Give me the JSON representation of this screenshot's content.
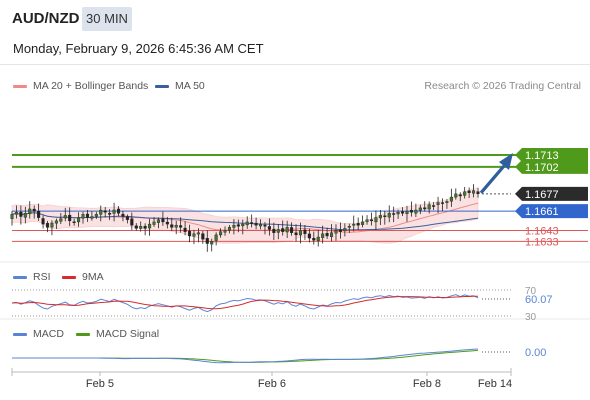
{
  "header": {
    "symbol": "AUD/NZD",
    "timeframe": "30 MIN",
    "datetime": "Monday, February 9, 2026 6:45:36 AM CET"
  },
  "credit": "Research © 2026 Trading Central",
  "colors": {
    "candle": "#3d7a2a",
    "bollinger_fill": "#fbdede",
    "ma20": "#f08a8a",
    "ma50": "#3a5f9e",
    "support": "#e05555",
    "resistance": "#4f9a1a",
    "current": "#3366cc",
    "rsi": "#5b84d6",
    "rsi_ma": "#d62c2c",
    "macd": "#5b84d6",
    "macd_signal": "#4f9a1a",
    "arrow": "#2e5e9e"
  },
  "chart_data": [
    {
      "type": "candlestick",
      "title": "AUD/NZD",
      "legend": [
        {
          "name": "MA 20 + Bollinger Bands",
          "color": "#f08a8a"
        },
        {
          "name": "MA 50",
          "color": "#3a5f9e"
        }
      ],
      "x_ticks": [
        "Feb 5",
        "Feb 6",
        "Feb 8",
        "Feb 14"
      ],
      "ylim": [
        1.162,
        1.172
      ],
      "close_series": [
        1.1658,
        1.166,
        1.1656,
        1.1659,
        1.1663,
        1.1661,
        1.1655,
        1.1649,
        1.1646,
        1.165,
        1.1652,
        1.1654,
        1.1657,
        1.1652,
        1.1651,
        1.1655,
        1.1658,
        1.1655,
        1.1656,
        1.1658,
        1.1662,
        1.166,
        1.1658,
        1.1662,
        1.1659,
        1.1656,
        1.1653,
        1.1648,
        1.1645,
        1.1647,
        1.1645,
        1.1649,
        1.1651,
        1.1653,
        1.1651,
        1.1649,
        1.1646,
        1.1648,
        1.1646,
        1.1642,
        1.1638,
        1.164,
        1.1641,
        1.1635,
        1.1631,
        1.1633,
        1.1639,
        1.1642,
        1.1643,
        1.1646,
        1.1648,
        1.1647,
        1.1649,
        1.1651,
        1.165,
        1.1648,
        1.1649,
        1.1647,
        1.1644,
        1.1641,
        1.1644,
        1.1642,
        1.1646,
        1.1641,
        1.1639,
        1.1643,
        1.164,
        1.1636,
        1.1634,
        1.1637,
        1.164,
        1.1638,
        1.1641,
        1.1643,
        1.1642,
        1.1645,
        1.1647,
        1.1649,
        1.1648,
        1.1651,
        1.1653,
        1.1652,
        1.1655,
        1.1657,
        1.1656,
        1.1659,
        1.1658,
        1.166,
        1.1659,
        1.1661,
        1.166,
        1.1662,
        1.1664,
        1.1663,
        1.1667,
        1.1666,
        1.1669,
        1.1668,
        1.167,
        1.1674,
        1.1677,
        1.1675,
        1.1679,
        1.1678,
        1.168,
        1.1677
      ],
      "levels": [
        {
          "label": "1.1713",
          "value": 1.1713,
          "kind": "resistance"
        },
        {
          "label": "1.1702",
          "value": 1.1702,
          "kind": "resistance"
        },
        {
          "label": "1.1677",
          "value": 1.1677,
          "kind": "last"
        },
        {
          "label": "1.1661",
          "value": 1.1661,
          "kind": "pivot"
        },
        {
          "label": "1.1643",
          "value": 1.1643,
          "kind": "support"
        },
        {
          "label": "1.1633",
          "value": 1.1633,
          "kind": "support"
        }
      ]
    },
    {
      "type": "line",
      "title": "RSI",
      "legend": [
        {
          "name": "RSI",
          "color": "#5b84d6"
        },
        {
          "name": "9MA",
          "color": "#d62c2c"
        }
      ],
      "ylim": [
        30,
        70
      ],
      "value_label": "60.07"
    },
    {
      "type": "line",
      "title": "MACD",
      "legend": [
        {
          "name": "MACD",
          "color": "#5b84d6"
        },
        {
          "name": "MACD Signal",
          "color": "#4f9a1a"
        }
      ],
      "value_label": "0.00"
    }
  ]
}
